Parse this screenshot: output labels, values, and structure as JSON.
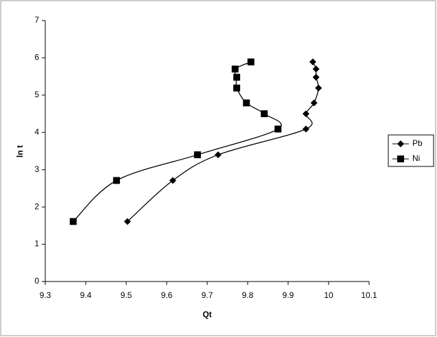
{
  "chart_data": {
    "type": "scatter",
    "smooth": true,
    "xlabel": "Qt",
    "ylabel": "ln t",
    "xlim": [
      9.3,
      10.1
    ],
    "xticks": [
      9.3,
      9.4,
      9.5,
      9.6,
      9.7,
      9.8,
      9.9,
      10,
      10.1
    ],
    "ylim": [
      0,
      7
    ],
    "yticks": [
      0,
      1,
      2,
      3,
      4,
      5,
      6,
      7
    ],
    "legend": "right",
    "series": [
      {
        "name": "Pb",
        "color": "#000000",
        "marker": "diamond",
        "x": [
          9.503,
          9.615,
          9.727,
          9.944,
          9.944,
          9.964,
          9.975,
          9.969,
          9.969,
          9.961
        ],
        "values": [
          1.61,
          2.71,
          3.4,
          4.09,
          4.5,
          4.79,
          5.19,
          5.48,
          5.7,
          5.89
        ]
      },
      {
        "name": "Ni",
        "color": "#000000",
        "marker": "square",
        "x": [
          9.369,
          9.476,
          9.676,
          9.875,
          9.841,
          9.797,
          9.773,
          9.773,
          9.769,
          9.808
        ],
        "values": [
          1.61,
          2.71,
          3.4,
          4.09,
          4.5,
          4.79,
          5.19,
          5.48,
          5.7,
          5.89
        ]
      }
    ]
  }
}
